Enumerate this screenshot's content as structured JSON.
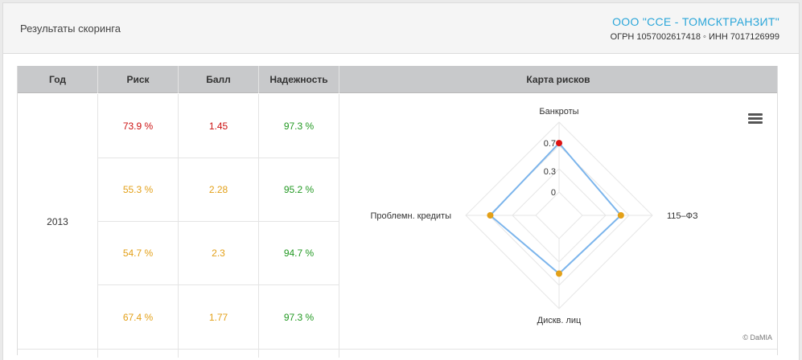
{
  "header": {
    "title": "Результаты скоринга",
    "company_name": "ООО \"ССЕ - ТОМСКТРАНЗИТ\"",
    "company_ids": "ОГРН 1057002617418 ◦ ИНН 7017126999"
  },
  "table": {
    "columns": [
      "Год",
      "Риск",
      "Балл",
      "Надежность",
      "Карта рисков"
    ],
    "year": "2013",
    "rows": [
      {
        "risk": "73.9 %",
        "score": "1.45",
        "reliability": "97.3 %"
      },
      {
        "risk": "55.3 %",
        "score": "2.28",
        "reliability": "95.2 %"
      },
      {
        "risk": "54.7 %",
        "score": "2.3",
        "reliability": "94.7 %"
      },
      {
        "risk": "67.4 %",
        "score": "1.77",
        "reliability": "97.3 %"
      }
    ],
    "colors": {
      "risk_high": "#cc1111",
      "risk_mid": "#e3a018",
      "good": "#229922"
    }
  },
  "chart_data": {
    "type": "radar",
    "axes": [
      "Банкроты",
      "115–ФЗ",
      "Дискв. лиц",
      "Проблемн. кредиты"
    ],
    "values": [
      0.7,
      0.55,
      0.5,
      0.65
    ],
    "point_colors": [
      "#dd1111",
      "#e3a018",
      "#e3a018",
      "#e3a018"
    ],
    "ticks": [
      "0",
      "0.3",
      "0.7"
    ],
    "range": [
      0,
      1.0
    ],
    "line_color": "#7cb5ec",
    "credit": "© DaMIA",
    "menu_icon": "hamburger-menu-icon"
  }
}
